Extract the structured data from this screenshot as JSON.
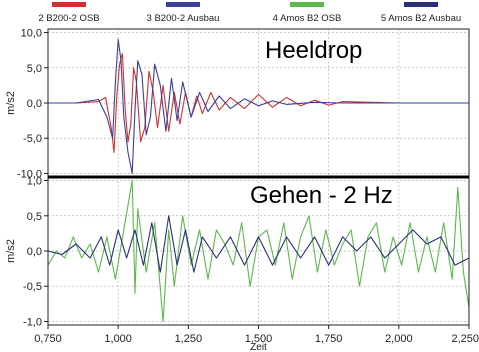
{
  "legend": [
    {
      "label": "2  B200-2 OSB",
      "color": "#d03030"
    },
    {
      "label": "3  B200-2 Ausbau",
      "color": "#3a3f9a"
    },
    {
      "label": "4  Amos B2 OSB",
      "color": "#5cb84a"
    },
    {
      "label": "5  Amos B2 Ausbau",
      "color": "#2a2f7a"
    }
  ],
  "chart_data": [
    {
      "type": "line",
      "annotation": "Heeldrop",
      "ylabel": "m/s2",
      "xlim": [
        0.75,
        2.25
      ],
      "ylim": [
        -10.5,
        10.5
      ],
      "yticks": [
        "10,0",
        "5,0",
        "0,0",
        "-5,0",
        "-10,0"
      ],
      "ytick_values": [
        10,
        5,
        0,
        -5,
        -10
      ],
      "grid": true,
      "series": [
        {
          "name": "2  B200-2 OSB",
          "color": "#d03030",
          "x": [
            0.75,
            0.85,
            0.93,
            0.955,
            0.975,
            0.985,
            0.995,
            1.005,
            1.015,
            1.025,
            1.035,
            1.045,
            1.055,
            1.065,
            1.08,
            1.095,
            1.11,
            1.125,
            1.14,
            1.16,
            1.18,
            1.2,
            1.22,
            1.24,
            1.26,
            1.28,
            1.3,
            1.33,
            1.36,
            1.4,
            1.45,
            1.5,
            1.55,
            1.6,
            1.65,
            1.7,
            1.75,
            1.8,
            1.9,
            2.0,
            2.1,
            2.25
          ],
          "y": [
            0.0,
            0.0,
            0.2,
            0.8,
            -3.5,
            -7.0,
            1.0,
            5.5,
            7.0,
            -1.0,
            -5.5,
            -3.0,
            5.0,
            3.0,
            -5.5,
            -3.5,
            4.5,
            1.5,
            -3.5,
            2.5,
            -4.0,
            1.5,
            -3.0,
            1.5,
            -2.0,
            1.0,
            -1.5,
            1.5,
            -1.0,
            0.8,
            -0.8,
            1.2,
            -0.6,
            0.8,
            -0.4,
            0.4,
            -0.3,
            0.2,
            0.1,
            0.0,
            0.0,
            0.0
          ]
        },
        {
          "name": "3  B200-2 Ausbau",
          "color": "#3a3f9a",
          "x": [
            0.75,
            0.85,
            0.93,
            0.96,
            0.98,
            0.99,
            1.0,
            1.01,
            1.02,
            1.035,
            1.05,
            1.06,
            1.07,
            1.085,
            1.1,
            1.115,
            1.13,
            1.15,
            1.17,
            1.19,
            1.21,
            1.23,
            1.26,
            1.29,
            1.32,
            1.36,
            1.4,
            1.45,
            1.5,
            1.55,
            1.6,
            1.7,
            1.8,
            1.9,
            2.0,
            2.1,
            2.25
          ],
          "y": [
            0.0,
            0.0,
            0.5,
            -2.0,
            -5.0,
            3.0,
            9.0,
            6.0,
            -2.0,
            -7.0,
            -10.0,
            -1.0,
            6.0,
            4.0,
            -4.5,
            -2.0,
            5.5,
            2.5,
            -4.0,
            3.5,
            -2.5,
            3.0,
            -2.0,
            1.5,
            -1.2,
            1.0,
            -0.8,
            0.6,
            -0.4,
            0.3,
            -0.2,
            0.1,
            0.0,
            0.0,
            0.0,
            0.0,
            0.0
          ]
        }
      ]
    },
    {
      "type": "line",
      "annotation": "Gehen - 2 Hz",
      "ylabel": "m/s2",
      "xlabel": "Zeit",
      "xlim": [
        0.75,
        2.25
      ],
      "ylim": [
        -1.05,
        1.05
      ],
      "yticks": [
        "1,0",
        "0,5",
        "0,0",
        "-0,5",
        "-1,0"
      ],
      "ytick_values": [
        1.0,
        0.5,
        0.0,
        -0.5,
        -1.0
      ],
      "xticks": [
        "0,750",
        "1,000",
        "1,250",
        "1,500",
        "1,750",
        "2,000",
        "2,250"
      ],
      "xtick_values": [
        0.75,
        1.0,
        1.25,
        1.5,
        1.75,
        2.0,
        2.25
      ],
      "grid": true,
      "series": [
        {
          "name": "4  Amos B2 OSB",
          "color": "#5cb84a",
          "x": [
            0.75,
            0.78,
            0.81,
            0.84,
            0.87,
            0.9,
            0.93,
            0.96,
            0.99,
            1.02,
            1.05,
            1.06,
            1.07,
            1.1,
            1.13,
            1.16,
            1.18,
            1.2,
            1.23,
            1.26,
            1.29,
            1.32,
            1.35,
            1.38,
            1.41,
            1.44,
            1.47,
            1.5,
            1.53,
            1.56,
            1.59,
            1.62,
            1.65,
            1.68,
            1.71,
            1.74,
            1.77,
            1.8,
            1.83,
            1.86,
            1.89,
            1.92,
            1.95,
            1.98,
            2.01,
            2.04,
            2.07,
            2.1,
            2.13,
            2.16,
            2.19,
            2.21,
            2.23,
            2.25
          ],
          "y": [
            -0.2,
            0.0,
            -0.1,
            0.2,
            -0.1,
            0.1,
            -0.3,
            0.2,
            -0.4,
            0.3,
            1.0,
            -0.6,
            0.6,
            -0.3,
            0.4,
            -1.0,
            0.3,
            -0.5,
            0.5,
            -0.2,
            0.3,
            -0.4,
            0.3,
            0.1,
            -0.2,
            0.4,
            -0.5,
            0.2,
            0.3,
            -0.2,
            0.4,
            -0.4,
            0.2,
            0.5,
            -0.3,
            0.3,
            -0.2,
            0.1,
            0.3,
            -0.5,
            0.2,
            0.4,
            -0.3,
            0.2,
            -0.2,
            0.4,
            -0.3,
            0.2,
            -0.3,
            0.4,
            -0.4,
            0.9,
            -0.3,
            -0.8
          ]
        },
        {
          "name": "5  Amos B2 Ausbau",
          "color": "#2a2f7a",
          "x": [
            0.75,
            0.8,
            0.85,
            0.9,
            0.94,
            0.97,
            1.0,
            1.03,
            1.06,
            1.09,
            1.12,
            1.15,
            1.18,
            1.21,
            1.24,
            1.27,
            1.3,
            1.35,
            1.4,
            1.45,
            1.5,
            1.55,
            1.6,
            1.65,
            1.7,
            1.75,
            1.8,
            1.85,
            1.9,
            1.95,
            2.0,
            2.05,
            2.1,
            2.15,
            2.2,
            2.25
          ],
          "y": [
            0.0,
            -0.05,
            0.1,
            -0.1,
            0.2,
            -0.2,
            0.3,
            -0.1,
            0.3,
            -0.2,
            0.4,
            -0.3,
            0.5,
            -0.2,
            0.3,
            -0.3,
            0.2,
            -0.1,
            0.2,
            -0.2,
            0.2,
            -0.2,
            0.2,
            -0.1,
            0.2,
            -0.2,
            0.2,
            0.0,
            0.2,
            -0.1,
            0.1,
            0.3,
            0.1,
            0.2,
            -0.2,
            -0.1
          ]
        }
      ]
    }
  ]
}
